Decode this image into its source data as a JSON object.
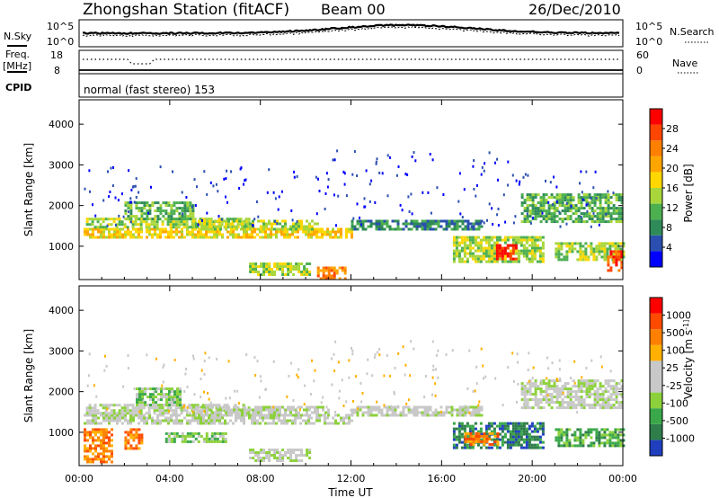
{
  "header": {
    "station": "Zhongshan Station (fitACF)",
    "beam": "Beam 00",
    "date": "26/Dec/2010"
  },
  "noise_panel": {
    "left_label": "N.Sky",
    "right_label": "N.Search",
    "left_ticks": [
      "10^5",
      "10^0"
    ],
    "right_ticks": [
      "10^5",
      "10^0"
    ]
  },
  "freq_panel": {
    "left_label_line1": "Freq.",
    "left_label_line2": "[MHz]",
    "right_label": "Nave",
    "left_ticks": [
      "18",
      "8"
    ],
    "right_ticks": [
      "60",
      "0"
    ]
  },
  "cpid_panel": {
    "label": "CPID",
    "text": "normal (fast stereo) 153"
  },
  "colors": {
    "power": [
      "#0000ff",
      "#2a4fb0",
      "#2e8b57",
      "#4caf50",
      "#a8d63a",
      "#ffd700",
      "#ffa500",
      "#ff7f00",
      "#ff4500",
      "#ff0000"
    ],
    "velocity": [
      "#1f3fbf",
      "#2e7d4a",
      "#3aa84a",
      "#8cd13c",
      "#c8c8c8",
      "#c8c8c8",
      "#ffb000",
      "#ff8000",
      "#ff4a00",
      "#ff0000"
    ]
  },
  "chart_data": [
    {
      "type": "heatmap",
      "name": "power-panel",
      "ylabel": "Slant Range [km]",
      "xlabel": "",
      "x_range_hours": [
        0,
        24
      ],
      "ylim": [
        180,
        4600
      ],
      "y_ticks": [
        1000,
        2000,
        3000,
        4000
      ],
      "x_ticks": [
        "00:00",
        "04:00",
        "08:00",
        "12:00",
        "16:00",
        "20:00",
        "00:00"
      ],
      "colorbar": {
        "label": "Power [dB]",
        "levels": [
          "4",
          "8",
          "12",
          "16",
          "20",
          "24",
          "28"
        ]
      },
      "regions": [
        {
          "t": [
            0.2,
            12.0
          ],
          "r": [
            1200,
            1450
          ],
          "level": 5
        },
        {
          "t": [
            0.3,
            7.5
          ],
          "r": [
            1450,
            1700
          ],
          "level": 4
        },
        {
          "t": [
            2.0,
            5.0
          ],
          "r": [
            1700,
            2100
          ],
          "level": 3
        },
        {
          "t": [
            5.0,
            10.5
          ],
          "r": [
            1400,
            1650
          ],
          "level": 4
        },
        {
          "t": [
            7.5,
            10.2
          ],
          "r": [
            300,
            600
          ],
          "level": 4
        },
        {
          "t": [
            10.5,
            11.8
          ],
          "r": [
            200,
            500
          ],
          "level": 7
        },
        {
          "t": [
            12.0,
            17.8
          ],
          "r": [
            1450,
            1650
          ],
          "level": 2
        },
        {
          "t": [
            16.5,
            20.5
          ],
          "r": [
            600,
            1250
          ],
          "level": 4
        },
        {
          "t": [
            18.4,
            19.3
          ],
          "r": [
            700,
            1050
          ],
          "level": 9
        },
        {
          "t": [
            19.5,
            24.0
          ],
          "r": [
            1600,
            2300
          ],
          "level": 3
        },
        {
          "t": [
            21.0,
            24.0
          ],
          "r": [
            700,
            1100
          ],
          "level": 4
        },
        {
          "t": [
            23.3,
            24.0
          ],
          "r": [
            400,
            900
          ],
          "level": 8
        }
      ]
    },
    {
      "type": "heatmap",
      "name": "velocity-panel",
      "ylabel": "Slant Range [km]",
      "xlabel": "Time UT",
      "x_range_hours": [
        0,
        24
      ],
      "ylim": [
        180,
        4600
      ],
      "y_ticks": [
        1000,
        2000,
        3000,
        4000
      ],
      "x_ticks": [
        "00:00",
        "04:00",
        "08:00",
        "12:00",
        "16:00",
        "20:00",
        "00:00"
      ],
      "colorbar": {
        "label": "Velocity [m s^-1]",
        "levels": [
          "1000",
          "500",
          "100",
          "25",
          "-25",
          "-100",
          "-500",
          "-1000"
        ]
      },
      "regions": [
        {
          "t": [
            0.2,
            12.0
          ],
          "r": [
            1200,
            1450
          ],
          "level": 4
        },
        {
          "t": [
            0.3,
            7.5
          ],
          "r": [
            1450,
            1700
          ],
          "level": 4
        },
        {
          "t": [
            2.5,
            4.5
          ],
          "r": [
            1700,
            2100
          ],
          "level": 3
        },
        {
          "t": [
            5.0,
            11.0
          ],
          "r": [
            1400,
            1650
          ],
          "level": 4
        },
        {
          "t": [
            7.5,
            10.2
          ],
          "r": [
            300,
            600
          ],
          "level": 4
        },
        {
          "t": [
            0.2,
            1.5
          ],
          "r": [
            300,
            1100
          ],
          "level": 7
        },
        {
          "t": [
            2.0,
            2.8
          ],
          "r": [
            600,
            1100
          ],
          "level": 7
        },
        {
          "t": [
            3.8,
            6.5
          ],
          "r": [
            800,
            1000
          ],
          "level": 3
        },
        {
          "t": [
            12.0,
            17.8
          ],
          "r": [
            1450,
            1650
          ],
          "level": 4
        },
        {
          "t": [
            16.5,
            20.5
          ],
          "r": [
            600,
            1250
          ],
          "level": 1
        },
        {
          "t": [
            17.0,
            18.5
          ],
          "r": [
            700,
            1000
          ],
          "level": 7
        },
        {
          "t": [
            19.5,
            24.0
          ],
          "r": [
            1600,
            2300
          ],
          "level": 4
        },
        {
          "t": [
            21.0,
            24.0
          ],
          "r": [
            700,
            1100
          ],
          "level": 2
        }
      ]
    }
  ]
}
